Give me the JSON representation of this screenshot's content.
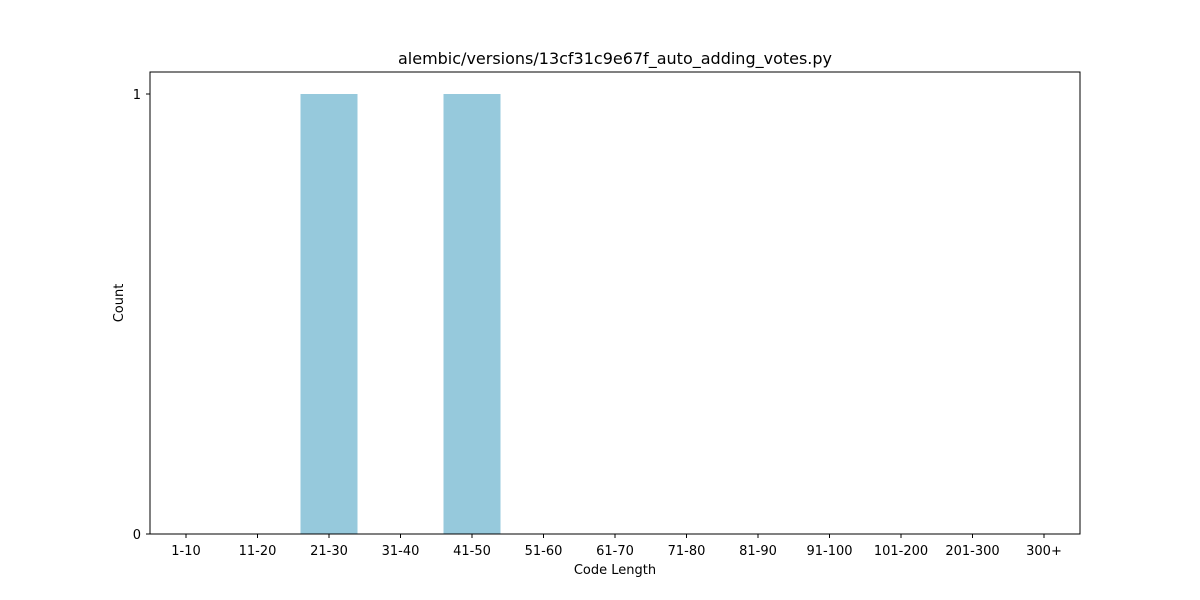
{
  "chart_data": {
    "type": "bar",
    "title": "alembic/versions/13cf31c9e67f_auto_adding_votes.py",
    "xlabel": "Code Length",
    "ylabel": "Count",
    "categories": [
      "1-10",
      "11-20",
      "21-30",
      "31-40",
      "41-50",
      "51-60",
      "61-70",
      "71-80",
      "81-90",
      "91-100",
      "101-200",
      "201-300",
      "300+"
    ],
    "values": [
      0,
      0,
      1,
      0,
      1,
      0,
      0,
      0,
      0,
      0,
      0,
      0,
      0
    ],
    "ylim": [
      0,
      1
    ],
    "yticks": [
      0,
      1
    ],
    "bar_color": "#96c9dc",
    "grid": false,
    "legend": "none"
  }
}
